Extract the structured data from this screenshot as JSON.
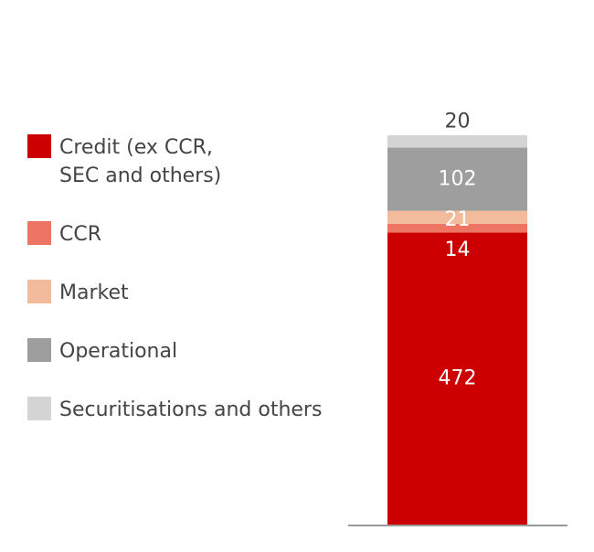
{
  "chart_data": {
    "type": "bar",
    "stacked": true,
    "categories": [
      ""
    ],
    "series": [
      {
        "name": "Credit (ex CCR,\nSEC and others)",
        "values": [
          472
        ],
        "color": "#cc0000",
        "label_color": "#ffffff"
      },
      {
        "name": "CCR",
        "values": [
          14
        ],
        "color": "#ec7563",
        "label_color": "#ffffff"
      },
      {
        "name": "Market",
        "values": [
          21
        ],
        "color": "#f2bc9c",
        "label_color": "#ffffff"
      },
      {
        "name": "Operational",
        "values": [
          102
        ],
        "color": "#9e9e9e",
        "label_color": "#ffffff"
      },
      {
        "name": "Securitisations and others",
        "values": [
          20
        ],
        "color": "#d4d4d4",
        "label_color": "#444444"
      }
    ],
    "ylim": [
      0,
      629
    ],
    "legend": "left",
    "grid": false
  }
}
